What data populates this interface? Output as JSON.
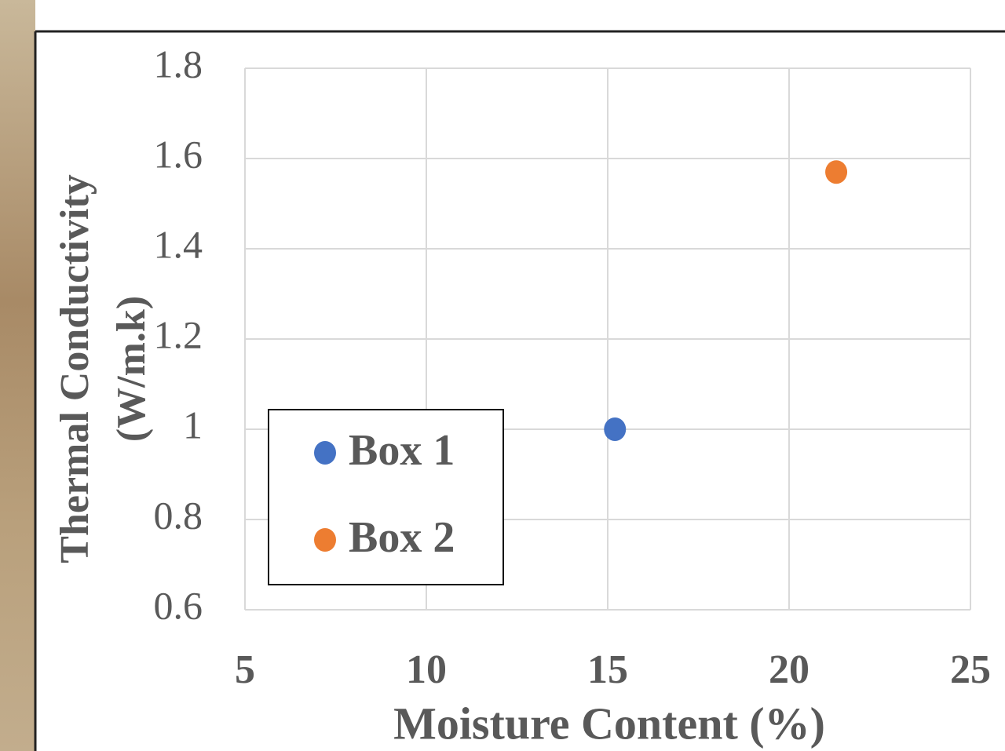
{
  "chart_data": {
    "type": "scatter",
    "xlabel": "Moisture Content (%)",
    "ylabel": [
      "Thermal Conductivity",
      "(W/m.k)"
    ],
    "xlim": [
      5,
      25
    ],
    "xticks": [
      5,
      10,
      15,
      20,
      25
    ],
    "ylim": [
      0.6,
      1.8
    ],
    "yticks": [
      0.6,
      0.8,
      1,
      1.2,
      1.4,
      1.6,
      1.8
    ],
    "grid": true,
    "legend": "lower left",
    "series": [
      {
        "name": "Box 1",
        "color": "#4472c4",
        "x": [
          15.2
        ],
        "values": [
          1.0
        ]
      },
      {
        "name": "Box 2",
        "color": "#ed7d31",
        "x": [
          21.3
        ],
        "values": [
          1.57
        ]
      }
    ]
  }
}
